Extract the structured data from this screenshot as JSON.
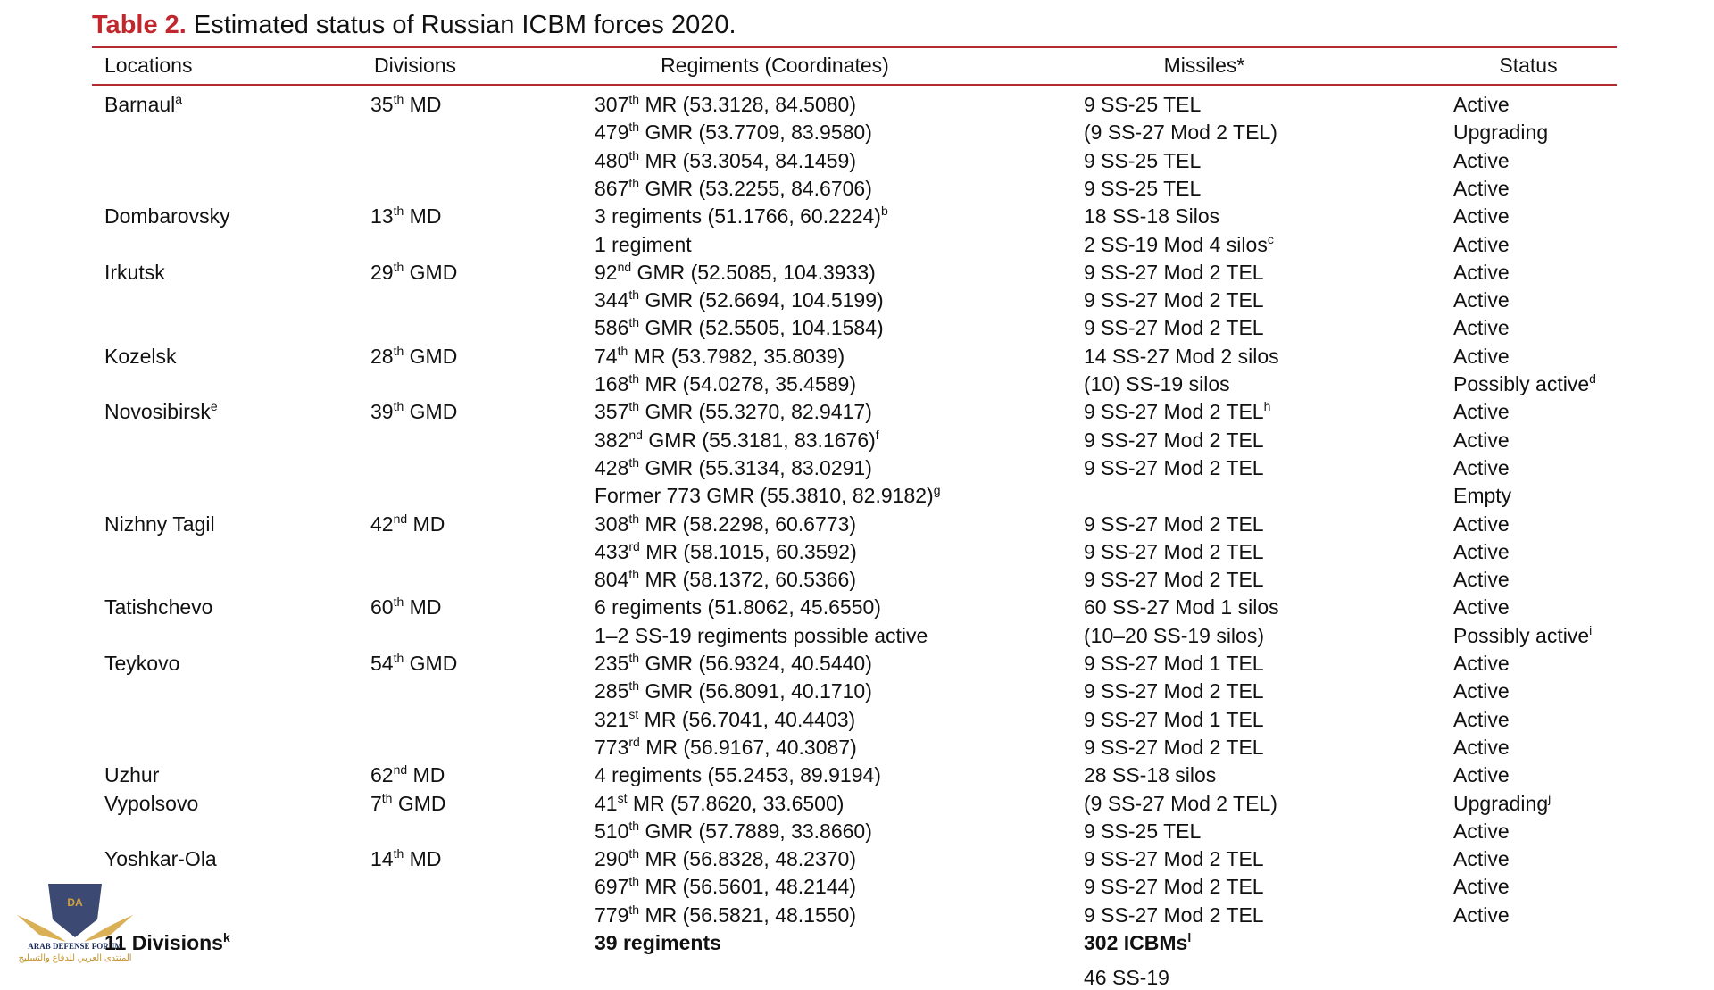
{
  "title_label": "Table 2.",
  "title": "Estimated status of Russian ICBM forces 2020.",
  "table": {
    "header": [
      "Locations",
      "Divisions",
      "Regiments (Coordinates)",
      "Missiles*",
      "Status"
    ],
    "rows": [
      [
        [
          "Barnaul",
          {
            "sup": "a"
          }
        ],
        [
          "35",
          {
            "sup": "th"
          },
          " MD"
        ],
        [
          "307",
          {
            "sup": "th"
          },
          " MR (53.3128, 84.5080)"
        ],
        [
          "9 SS-25 TEL"
        ],
        [
          "Active"
        ]
      ],
      [
        [],
        [],
        [
          "479",
          {
            "sup": "th"
          },
          " GMR (53.7709, 83.9580)"
        ],
        [
          "(9 SS-27 Mod 2 TEL)"
        ],
        [
          "Upgrading"
        ]
      ],
      [
        [],
        [],
        [
          "480",
          {
            "sup": "th"
          },
          " MR (53.3054, 84.1459)"
        ],
        [
          "9 SS-25 TEL"
        ],
        [
          "Active"
        ]
      ],
      [
        [],
        [],
        [
          "867",
          {
            "sup": "th"
          },
          " GMR (53.2255, 84.6706)"
        ],
        [
          "9 SS-25 TEL"
        ],
        [
          "Active"
        ]
      ],
      [
        [
          "Dombarovsky"
        ],
        [
          "13",
          {
            "sup": "th"
          },
          " MD"
        ],
        [
          "3 regiments (51.1766, 60.2224)",
          {
            "sup": "b"
          }
        ],
        [
          "18 SS-18 Silos"
        ],
        [
          "Active"
        ]
      ],
      [
        [],
        [],
        [
          "1 regiment"
        ],
        [
          "2 SS-19 Mod 4 silos",
          {
            "sup": "c"
          }
        ],
        [
          "Active"
        ]
      ],
      [
        [
          "Irkutsk"
        ],
        [
          "29",
          {
            "sup": "th"
          },
          " GMD"
        ],
        [
          "92",
          {
            "sup": "nd"
          },
          " GMR (52.5085, 104.3933)"
        ],
        [
          "9 SS-27 Mod 2 TEL"
        ],
        [
          "Active"
        ]
      ],
      [
        [],
        [],
        [
          "344",
          {
            "sup": "th"
          },
          " GMR (52.6694, 104.5199)"
        ],
        [
          "9 SS-27 Mod 2 TEL"
        ],
        [
          "Active"
        ]
      ],
      [
        [],
        [],
        [
          "586",
          {
            "sup": "th"
          },
          " GMR (52.5505, 104.1584)"
        ],
        [
          "9 SS-27 Mod 2 TEL"
        ],
        [
          "Active"
        ]
      ],
      [
        [
          "Kozelsk"
        ],
        [
          "28",
          {
            "sup": "th"
          },
          " GMD"
        ],
        [
          "74",
          {
            "sup": "th"
          },
          " MR (53.7982, 35.8039)"
        ],
        [
          "14 SS-27 Mod 2 silos"
        ],
        [
          "Active"
        ]
      ],
      [
        [],
        [],
        [
          "168",
          {
            "sup": "th"
          },
          " MR (54.0278, 35.4589)"
        ],
        [
          "(10) SS-19 silos"
        ],
        [
          "Possibly active",
          {
            "sup": "d"
          }
        ]
      ],
      [
        [
          "Novosibirsk",
          {
            "sup": "e"
          }
        ],
        [
          "39",
          {
            "sup": "th"
          },
          " GMD"
        ],
        [
          "357",
          {
            "sup": "th"
          },
          " GMR (55.3270, 82.9417)"
        ],
        [
          "9 SS-27 Mod 2 TEL",
          {
            "sup": "h"
          }
        ],
        [
          "Active"
        ]
      ],
      [
        [],
        [],
        [
          "382",
          {
            "sup": "nd"
          },
          " GMR (55.3181, 83.1676)",
          {
            "sup": "f"
          }
        ],
        [
          "9 SS-27 Mod 2 TEL"
        ],
        [
          "Active"
        ]
      ],
      [
        [],
        [],
        [
          "428",
          {
            "sup": "th"
          },
          " GMR (55.3134, 83.0291)"
        ],
        [
          "9 SS-27 Mod 2 TEL"
        ],
        [
          "Active"
        ]
      ],
      [
        [],
        [],
        [
          "Former 773 GMR (55.3810, 82.9182)",
          {
            "sup": "g"
          }
        ],
        [],
        [
          "Empty"
        ]
      ],
      [
        [
          "Nizhny Tagil"
        ],
        [
          "42",
          {
            "sup": "nd"
          },
          " MD"
        ],
        [
          "308",
          {
            "sup": "th"
          },
          " MR (58.2298, 60.6773)"
        ],
        [
          "9 SS-27 Mod 2 TEL"
        ],
        [
          "Active"
        ]
      ],
      [
        [],
        [],
        [
          "433",
          {
            "sup": "rd"
          },
          " MR (58.1015, 60.3592)"
        ],
        [
          "9 SS-27 Mod 2 TEL"
        ],
        [
          "Active"
        ]
      ],
      [
        [],
        [],
        [
          "804",
          {
            "sup": "th"
          },
          " MR (58.1372, 60.5366)"
        ],
        [
          "9 SS-27 Mod 2 TEL"
        ],
        [
          "Active"
        ]
      ],
      [
        [
          "Tatishchevo"
        ],
        [
          "60",
          {
            "sup": "th"
          },
          " MD"
        ],
        [
          "6 regiments (51.8062, 45.6550)"
        ],
        [
          "60 SS-27 Mod 1 silos"
        ],
        [
          "Active"
        ]
      ],
      [
        [],
        [],
        [
          "1–2 SS-19 regiments possible active"
        ],
        [
          "(10–20 SS-19 silos)"
        ],
        [
          "Possibly active",
          {
            "sup": "i"
          }
        ]
      ],
      [
        [
          "Teykovo"
        ],
        [
          "54",
          {
            "sup": "th"
          },
          " GMD"
        ],
        [
          "235",
          {
            "sup": "th"
          },
          " GMR (56.9324, 40.5440)"
        ],
        [
          "9 SS-27 Mod 1 TEL"
        ],
        [
          "Active"
        ]
      ],
      [
        [],
        [],
        [
          "285",
          {
            "sup": "th"
          },
          " GMR (56.8091, 40.1710)"
        ],
        [
          "9 SS-27 Mod 2 TEL"
        ],
        [
          "Active"
        ]
      ],
      [
        [],
        [],
        [
          "321",
          {
            "sup": "st"
          },
          " MR (56.7041, 40.4403)"
        ],
        [
          "9 SS-27 Mod 1 TEL"
        ],
        [
          "Active"
        ]
      ],
      [
        [],
        [],
        [
          "773",
          {
            "sup": "rd"
          },
          " MR (56.9167, 40.3087)"
        ],
        [
          "9 SS-27 Mod 2 TEL"
        ],
        [
          "Active"
        ]
      ],
      [
        [
          "Uzhur"
        ],
        [
          "62",
          {
            "sup": "nd"
          },
          " MD"
        ],
        [
          "4 regiments (55.2453, 89.9194)"
        ],
        [
          "28 SS-18 silos"
        ],
        [
          "Active"
        ]
      ],
      [
        [
          "Vypolsovo"
        ],
        [
          "7",
          {
            "sup": "th"
          },
          " GMD"
        ],
        [
          "41",
          {
            "sup": "st"
          },
          " MR (57.8620, 33.6500)"
        ],
        [
          "(9 SS-27 Mod 2 TEL)"
        ],
        [
          "Upgrading",
          {
            "sup": "j"
          }
        ]
      ],
      [
        [],
        [],
        [
          "510",
          {
            "sup": "th"
          },
          " GMR (57.7889, 33.8660)"
        ],
        [
          "9 SS-25 TEL"
        ],
        [
          "Active"
        ]
      ],
      [
        [
          "Yoshkar-Ola"
        ],
        [
          "14",
          {
            "sup": "th"
          },
          " MD"
        ],
        [
          "290",
          {
            "sup": "th"
          },
          " MR (56.8328, 48.2370)"
        ],
        [
          "9 SS-27 Mod 2 TEL"
        ],
        [
          "Active"
        ]
      ],
      [
        [],
        [],
        [
          "697",
          {
            "sup": "th"
          },
          " MR (56.5601, 48.2144)"
        ],
        [
          "9 SS-27 Mod 2 TEL"
        ],
        [
          "Active"
        ]
      ],
      [
        [],
        [],
        [
          "779",
          {
            "sup": "th"
          },
          " MR (56.5821, 48.1550)"
        ],
        [
          "9 SS-27 Mod 2 TEL"
        ],
        [
          "Active"
        ]
      ]
    ],
    "total": [
      [
        "11 Divisions",
        {
          "sup": "k"
        }
      ],
      [],
      [
        "39 regiments"
      ],
      [
        "302 ICBMs",
        {
          "sup": "l"
        }
      ],
      []
    ],
    "partial_row": [
      [],
      [],
      [],
      [
        "46 SS-19"
      ],
      []
    ]
  },
  "watermark": {
    "logo": "DA",
    "name": "ARAB DEFENSE FORUM",
    "arabic": "المنتدى العربي للدفاع والتسليح"
  }
}
